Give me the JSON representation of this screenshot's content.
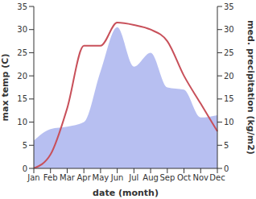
{
  "chart_data": {
    "type": "line",
    "xlabel": "date (month)",
    "ylabel": "max temp (C)",
    "y2label": "med. precipitation (kg/m2)",
    "categories": [
      "Jan",
      "Feb",
      "Mar",
      "Apr",
      "May",
      "Jun",
      "Jul",
      "Aug",
      "Sep",
      "Oct",
      "Nov",
      "Dec"
    ],
    "series": [
      {
        "type": "area",
        "axis": "y2",
        "color": "#aab4ee",
        "values": [
          6,
          8.5,
          9,
          10,
          21,
          30.5,
          22,
          25,
          17.5,
          17,
          11,
          11.5
        ]
      },
      {
        "type": "line",
        "axis": "y",
        "color": "#c8505a",
        "values": [
          0,
          3,
          13,
          26.5,
          26.5,
          31.5,
          31,
          30,
          27.5,
          20,
          14,
          8
        ]
      }
    ],
    "ylim": [
      0,
      35
    ],
    "yticks": [
      0,
      5,
      10,
      15,
      20,
      25,
      30,
      35
    ],
    "y2lim": [
      0,
      35
    ],
    "y2ticks": [
      0,
      5,
      10,
      15,
      20,
      25,
      30,
      35
    ],
    "grid": false
  }
}
